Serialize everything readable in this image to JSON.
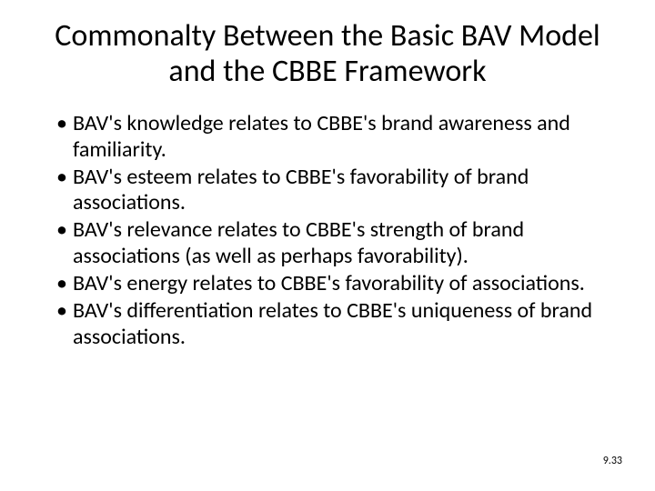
{
  "title": "Commonalty Between the Basic BAV Model and the CBBE Framework",
  "title_fontsize": 34,
  "title_color": "#000000",
  "bullets": [
    "BAV's knowledge relates to CBBE's brand awareness and familiarity.",
    "BAV's esteem relates to CBBE's favorability of brand associations.",
    "BAV's relevance relates to CBBE's strength of brand associations (as well as perhaps favorability).",
    "BAV's energy relates to CBBE's favorability of associations.",
    "BAV's differentiation relates to CBBE's uniqueness of brand associations."
  ],
  "bullet_fontsize": 24,
  "bullet_color": "#000000",
  "footer": "9.33",
  "footer_fontsize": 12,
  "footer_color": "#000000",
  "background_color": "#ffffff"
}
